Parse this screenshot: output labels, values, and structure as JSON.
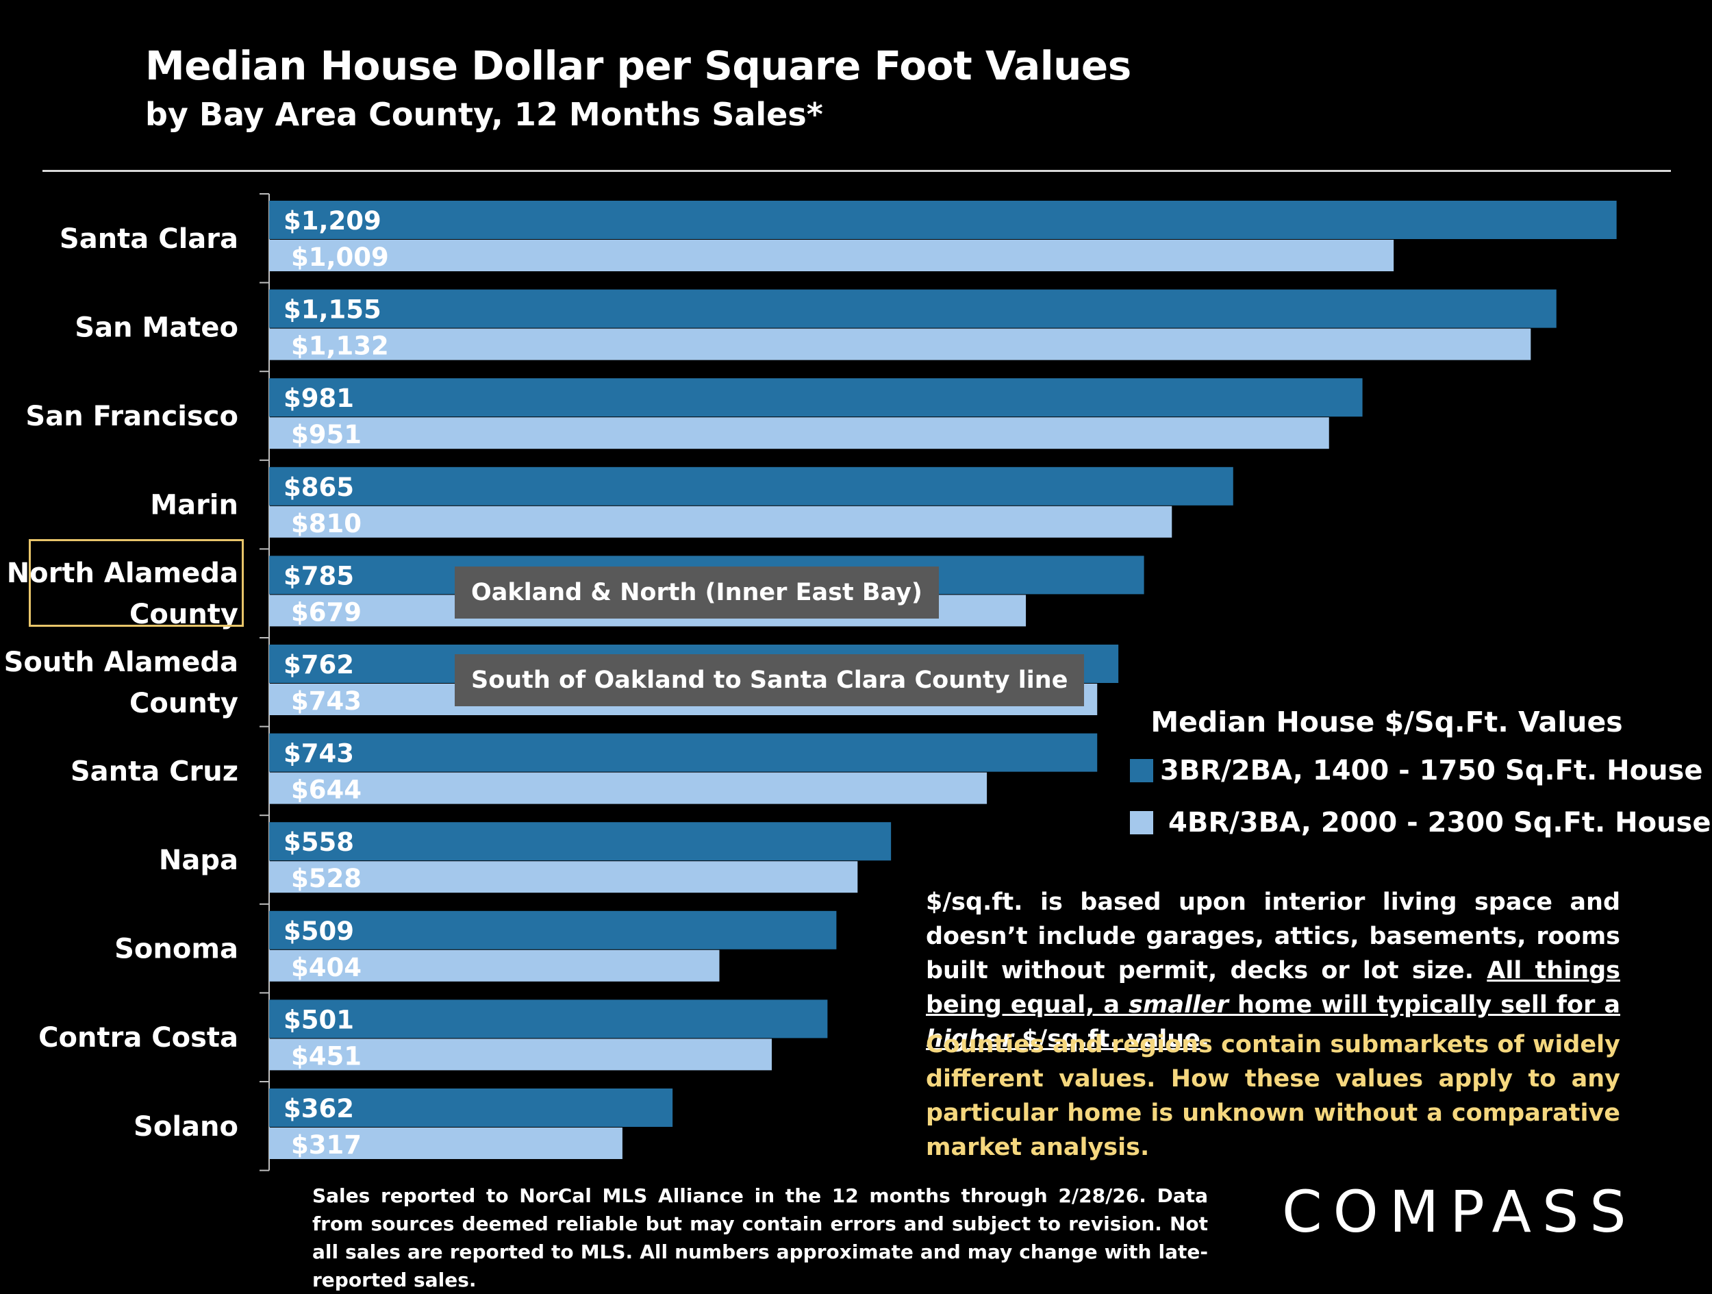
{
  "header": {
    "title": "Median House Dollar per Square Foot Values",
    "subtitle": "by Bay Area County, 12 Months Sales*"
  },
  "callouts": {
    "north_alameda": "Oakland & North (Inner East Bay)",
    "south_alameda": "South of Oakland to Santa Clara County line"
  },
  "legend": {
    "title": "Median House $/Sq.Ft. Values",
    "items": [
      {
        "label": "3BR/2BA, 1400 - 1750 Sq.Ft. House",
        "color": "#2471a3"
      },
      {
        "label": "4BR/3BA, 2000 - 2300 Sq.Ft. House",
        "color": "#a4c8ec"
      }
    ]
  },
  "notes": {
    "p1_plain": "$/sq.ft. is based upon interior living space and doesn’t include garages, attics, basements, rooms built without permit, decks or lot size. ",
    "p1_u1": "All things being equal, a ",
    "p1_i1": "smaller",
    "p1_u2": " home will typically sell for a ",
    "p1_i2": "higher",
    "p1_u3": " $/sq.ft. value",
    "p1_end": ".",
    "p2": "Counties and regions contain submarkets of widely different values. How these values apply to any particular home is unknown without a comparative market analysis."
  },
  "footnote": "Sales reported to NorCal MLS Alliance in the 12 months through 2/28/26. Data from sources deemed reliable but may contain errors and subject to revision. Not all sales are reported to MLS. All numbers approximate and may change with late-reported sales.",
  "logo": "COMPASS",
  "chart_data": {
    "type": "bar",
    "orientation": "horizontal",
    "categories": [
      "Santa Clara",
      "San Mateo",
      "San Francisco",
      "Marin",
      "North Alameda County",
      "South Alameda County",
      "Santa Cruz",
      "Napa",
      "Sonoma",
      "Contra Costa",
      "Solano"
    ],
    "category_lines": [
      [
        "Santa Clara"
      ],
      [
        "San Mateo"
      ],
      [
        "San Francisco"
      ],
      [
        "Marin"
      ],
      [
        "North Alameda",
        "County"
      ],
      [
        "South Alameda",
        "County"
      ],
      [
        "Santa Cruz"
      ],
      [
        "Napa"
      ],
      [
        "Sonoma"
      ],
      [
        "Contra Costa"
      ],
      [
        "Solano"
      ]
    ],
    "series": [
      {
        "name": "3BR/2BA, 1400 - 1750 Sq.Ft. House",
        "color": "#2471a3",
        "values": [
          1209,
          1155,
          981,
          865,
          785,
          762,
          743,
          558,
          509,
          501,
          362
        ],
        "labels": [
          "$1,209",
          "$1,155",
          "$981",
          "$865",
          "$785",
          "$762",
          "$743",
          "$558",
          "$509",
          "$501",
          "$362"
        ]
      },
      {
        "name": "4BR/3BA, 2000 - 2300 Sq.Ft. House",
        "color": "#a4c8ec",
        "values": [
          1009,
          1132,
          951,
          810,
          679,
          743,
          644,
          528,
          404,
          451,
          317
        ],
        "labels": [
          "$1,009",
          "$1,132",
          "$951",
          "$810",
          "$679",
          "$743",
          "$644",
          "$528",
          "$404",
          "$451",
          "$317"
        ]
      }
    ],
    "xlim": [
      0,
      1250
    ],
    "grid": false,
    "legend_position": "right"
  }
}
